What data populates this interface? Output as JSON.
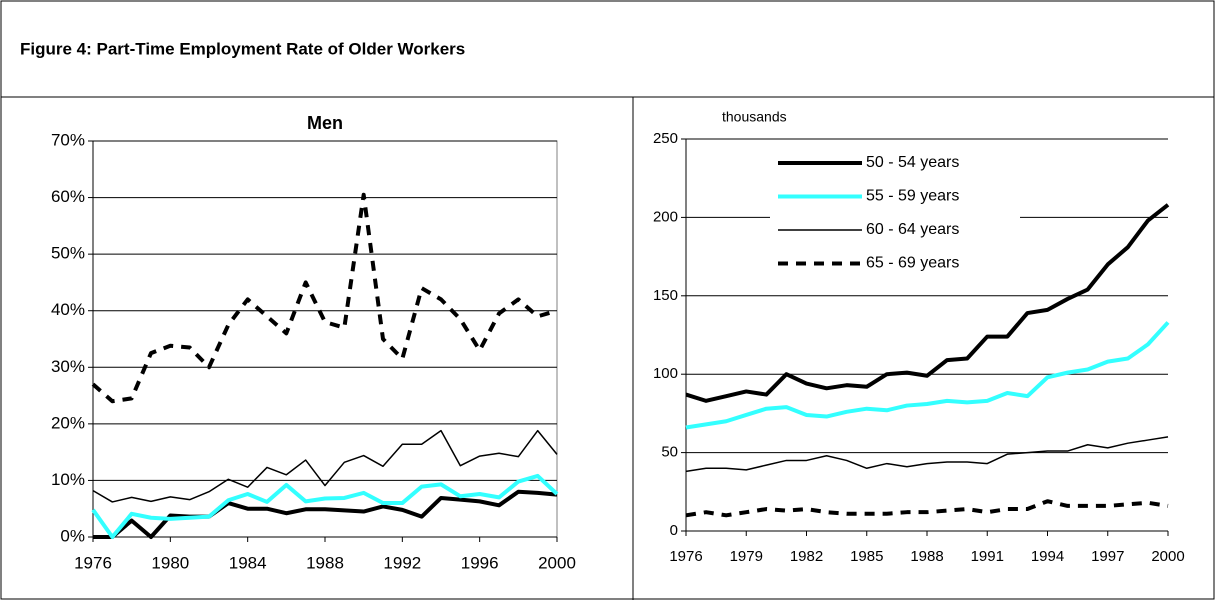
{
  "title": "Figure 4: Part-Time Employment Rate of Older Workers",
  "chart_data": [
    {
      "type": "line",
      "title": "Men",
      "x": [
        1976,
        1977,
        1978,
        1979,
        1980,
        1981,
        1982,
        1983,
        1984,
        1985,
        1986,
        1987,
        1988,
        1989,
        1990,
        1991,
        1992,
        1993,
        1994,
        1995,
        1996,
        1997,
        1998,
        1999,
        2000
      ],
      "xlim": [
        1976,
        2000
      ],
      "xticks": [
        1976,
        1980,
        1984,
        1988,
        1992,
        1996,
        2000
      ],
      "ylim": [
        0,
        70
      ],
      "yticks": [
        {
          "value": 0,
          "label": "0%"
        },
        {
          "value": 10,
          "label": "10%"
        },
        {
          "value": 20,
          "label": "20%"
        },
        {
          "value": 30,
          "label": "30%"
        },
        {
          "value": 40,
          "label": "40%"
        },
        {
          "value": 50,
          "label": "50%"
        },
        {
          "value": 60,
          "label": "60%"
        },
        {
          "value": 70,
          "label": "70%"
        }
      ],
      "grid": true,
      "series": [
        {
          "color": "#000000",
          "width": 4,
          "dashed": false,
          "values": [
            0,
            0,
            2.9,
            0,
            3.8,
            3.6,
            3.6,
            6,
            5,
            5,
            4.2,
            4.9,
            4.9,
            4.7,
            4.5,
            5.4,
            4.8,
            3.6,
            6.9,
            6.6,
            6.3,
            5.6,
            8,
            7.8,
            7.5
          ]
        },
        {
          "color": "#33ffff",
          "width": 4,
          "dashed": false,
          "values": [
            4.8,
            0,
            4.1,
            3.4,
            3.2,
            3.4,
            3.6,
            6.5,
            7.6,
            6.2,
            9.2,
            6.3,
            6.8,
            6.9,
            7.8,
            6,
            6,
            8.9,
            9.3,
            7.2,
            7.6,
            7,
            9.8,
            10.8,
            7.6
          ]
        },
        {
          "color": "#000000",
          "width": 1.5,
          "dashed": false,
          "values": [
            8.2,
            6.2,
            7,
            6.3,
            7.1,
            6.6,
            8,
            10.2,
            8.8,
            12.3,
            11,
            13.6,
            9.1,
            13.2,
            14.4,
            12.5,
            16.4,
            16.4,
            18.8,
            12.6,
            14.3,
            14.8,
            14.2,
            18.8,
            14.6
          ]
        },
        {
          "color": "#000000",
          "width": 4,
          "dashed": true,
          "values": [
            27,
            24,
            24.5,
            32.5,
            33.8,
            33.5,
            30,
            37.5,
            42,
            39,
            36,
            45,
            38,
            37,
            60.5,
            35,
            31.5,
            44,
            42,
            38.5,
            33,
            39.5,
            42,
            39,
            40
          ]
        }
      ]
    },
    {
      "type": "line",
      "ylabel": "thousands",
      "x": [
        1976,
        1977,
        1978,
        1979,
        1980,
        1981,
        1982,
        1983,
        1984,
        1985,
        1986,
        1987,
        1988,
        1989,
        1990,
        1991,
        1992,
        1993,
        1994,
        1995,
        1996,
        1997,
        1998,
        1999,
        2000
      ],
      "xlim": [
        1976,
        2000
      ],
      "xticks": [
        1976,
        1979,
        1982,
        1985,
        1988,
        1991,
        1994,
        1997,
        2000
      ],
      "ylim": [
        0,
        250
      ],
      "yticks": [
        0,
        50,
        100,
        150,
        200,
        250
      ],
      "grid": true,
      "legend": "upper left",
      "series": [
        {
          "name": "50 - 54 years",
          "color": "#000000",
          "width": 4,
          "dashed": false,
          "values": [
            87,
            83,
            86,
            89,
            87,
            100,
            94,
            91,
            93,
            92,
            100,
            101,
            99,
            109,
            110,
            124,
            124,
            139,
            141,
            148,
            154,
            170,
            181,
            198,
            208
          ]
        },
        {
          "name": "55 - 59 years",
          "color": "#33ffff",
          "width": 4,
          "dashed": false,
          "values": [
            66,
            68,
            70,
            74,
            78,
            79,
            74,
            73,
            76,
            78,
            77,
            80,
            81,
            83,
            82,
            83,
            88,
            86,
            98,
            101,
            103,
            108,
            110,
            119,
            133
          ]
        },
        {
          "name": "60 - 64 years",
          "color": "#000000",
          "width": 1.5,
          "dashed": false,
          "values": [
            38,
            40,
            40,
            39,
            42,
            45,
            45,
            48,
            45,
            40,
            43,
            41,
            43,
            44,
            44,
            43,
            49,
            50,
            51,
            51,
            55,
            53,
            56,
            58,
            60
          ]
        },
        {
          "name": "65 - 69 years",
          "color": "#000000",
          "width": 4,
          "dashed": true,
          "values": [
            10,
            12,
            10,
            12,
            14,
            13,
            14,
            12,
            11,
            11,
            11,
            12,
            12,
            13,
            14,
            12,
            14,
            14,
            19,
            16,
            16,
            16,
            17,
            18,
            16
          ]
        }
      ]
    }
  ]
}
